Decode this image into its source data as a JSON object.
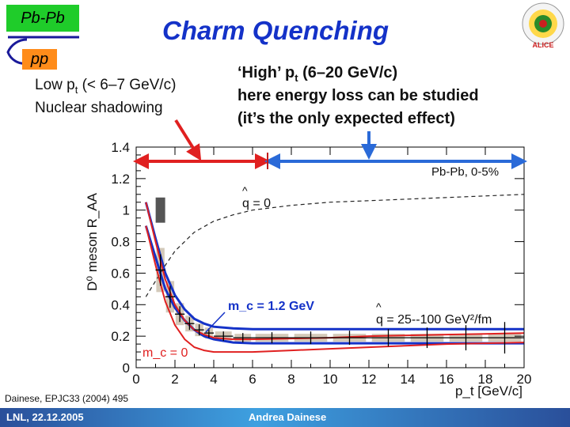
{
  "slide": {
    "title": "Charm Quenching",
    "tag_pbpb": "Pb-Pb",
    "tag_pp": "pp",
    "low_pt_line1_pre": "Low p",
    "low_pt_line1_sub": "t",
    "low_pt_line1_post": " (< 6–7 GeV/c)",
    "low_pt_line2": "Nuclear shadowing",
    "high_pt_line1_pre": "‘High’ p",
    "high_pt_line1_sub": "t",
    "high_pt_line1_post": "  (6–20 GeV/c)",
    "high_pt_line2": "here energy loss can be studied",
    "high_pt_line3": "(it’s the only expected effect)",
    "citation": "Dainese, EPJC33 (2004) 495",
    "footer_left": "LNL, 22.12.2005",
    "footer_center": "Andrea Dainese",
    "colors": {
      "title": "#1432c8",
      "pbpb_tag": "#1fcc2a",
      "pp_tag": "#ff8c1a",
      "arrow_red": "#e02020",
      "arrow_blue": "#2a6ad8"
    },
    "icons": [
      "alice-logo-icon"
    ]
  },
  "chart_data": {
    "type": "line",
    "ylabel": "D⁰ meson R_AA",
    "xlabel": "p_t [GeV/c]",
    "xlim": [
      0,
      20
    ],
    "ylim": [
      0,
      1.4
    ],
    "x_ticks": [
      0,
      2,
      4,
      6,
      8,
      10,
      12,
      14,
      16,
      18,
      20
    ],
    "y_ticks": [
      0,
      0.2,
      0.4,
      0.6,
      0.8,
      1,
      1.2,
      1.4
    ],
    "y_tick_labels": [
      "0",
      "0.2",
      "0.4",
      "0.6",
      "0.8",
      "1",
      "1.2",
      "1.4"
    ],
    "legend": "Pb-Pb,  0-5%",
    "annotations": {
      "q0": "q = 0",
      "mc12": "m_c = 1.2 GeV",
      "mc0": "m_c = 0",
      "qhat": "q = 25--100 GeV²/fm"
    },
    "series": [
      {
        "style": "dashed-black",
        "x": [
          0.5,
          1,
          1.5,
          2,
          3,
          4,
          5,
          6,
          8,
          10,
          12,
          14,
          16,
          18,
          20
        ],
        "y": [
          0.45,
          0.55,
          0.65,
          0.74,
          0.86,
          0.93,
          0.97,
          1.0,
          1.03,
          1.05,
          1.06,
          1.07,
          1.08,
          1.09,
          1.1
        ]
      },
      {
        "style": "blue-upper",
        "x": [
          0.5,
          1,
          1.5,
          2,
          2.5,
          3,
          3.5,
          4,
          5,
          6,
          8,
          10,
          12,
          14,
          16,
          18,
          20
        ],
        "y": [
          1.05,
          0.82,
          0.6,
          0.46,
          0.37,
          0.31,
          0.28,
          0.26,
          0.25,
          0.245,
          0.245,
          0.245,
          0.245,
          0.245,
          0.245,
          0.245,
          0.245
        ]
      },
      {
        "style": "blue-lower",
        "x": [
          0.5,
          1,
          1.5,
          2,
          2.5,
          3,
          3.5,
          4,
          5,
          6,
          8,
          10,
          12,
          14,
          16,
          18,
          20
        ],
        "y": [
          0.9,
          0.7,
          0.5,
          0.38,
          0.3,
          0.24,
          0.2,
          0.18,
          0.16,
          0.155,
          0.155,
          0.155,
          0.155,
          0.155,
          0.155,
          0.155,
          0.155
        ]
      },
      {
        "style": "red-upper",
        "x": [
          0.5,
          1,
          1.5,
          2,
          2.5,
          3,
          3.5,
          4,
          5,
          6,
          8,
          10,
          12,
          14,
          16,
          18,
          20
        ],
        "y": [
          1.05,
          0.8,
          0.56,
          0.4,
          0.3,
          0.24,
          0.21,
          0.19,
          0.18,
          0.18,
          0.185,
          0.19,
          0.2,
          0.205,
          0.21,
          0.215,
          0.22
        ]
      },
      {
        "style": "red-lower",
        "x": [
          0.5,
          1,
          1.5,
          2,
          2.5,
          3,
          3.5,
          4,
          5,
          6,
          8,
          10,
          12,
          14,
          16,
          18,
          20
        ],
        "y": [
          0.9,
          0.65,
          0.42,
          0.27,
          0.18,
          0.13,
          0.11,
          0.1,
          0.1,
          0.1,
          0.11,
          0.12,
          0.13,
          0.14,
          0.15,
          0.155,
          0.16
        ]
      }
    ],
    "points": [
      {
        "x": 1.25,
        "y": 0.62,
        "xerr": 0.25,
        "yerr": 0.1,
        "syst": 0.14
      },
      {
        "x": 1.75,
        "y": 0.45,
        "xerr": 0.25,
        "yerr": 0.07,
        "syst": 0.1
      },
      {
        "x": 2.25,
        "y": 0.34,
        "xerr": 0.25,
        "yerr": 0.05,
        "syst": 0.07
      },
      {
        "x": 2.75,
        "y": 0.28,
        "xerr": 0.25,
        "yerr": 0.04,
        "syst": 0.05
      },
      {
        "x": 3.25,
        "y": 0.24,
        "xerr": 0.25,
        "yerr": 0.035,
        "syst": 0.04
      },
      {
        "x": 3.75,
        "y": 0.22,
        "xerr": 0.25,
        "yerr": 0.03,
        "syst": 0.035
      },
      {
        "x": 4.5,
        "y": 0.2,
        "xerr": 0.5,
        "yerr": 0.03,
        "syst": 0.03
      },
      {
        "x": 5.5,
        "y": 0.19,
        "xerr": 0.5,
        "yerr": 0.03,
        "syst": 0.025
      },
      {
        "x": 7,
        "y": 0.19,
        "xerr": 1,
        "yerr": 0.035,
        "syst": 0.025
      },
      {
        "x": 9,
        "y": 0.19,
        "xerr": 1,
        "yerr": 0.04,
        "syst": 0.025
      },
      {
        "x": 11,
        "y": 0.19,
        "xerr": 1,
        "yerr": 0.045,
        "syst": 0.025
      },
      {
        "x": 13,
        "y": 0.19,
        "xerr": 1,
        "yerr": 0.055,
        "syst": 0.025
      },
      {
        "x": 15,
        "y": 0.19,
        "xerr": 1,
        "yerr": 0.065,
        "syst": 0.025
      },
      {
        "x": 17,
        "y": 0.19,
        "xerr": 1,
        "yerr": 0.08,
        "syst": 0.025
      },
      {
        "x": 19,
        "y": 0.19,
        "xerr": 1,
        "yerr": 0.1,
        "syst": 0.025
      }
    ],
    "normalization_box": {
      "x": 1.25,
      "y": 1.0,
      "half_height": 0.08
    }
  }
}
